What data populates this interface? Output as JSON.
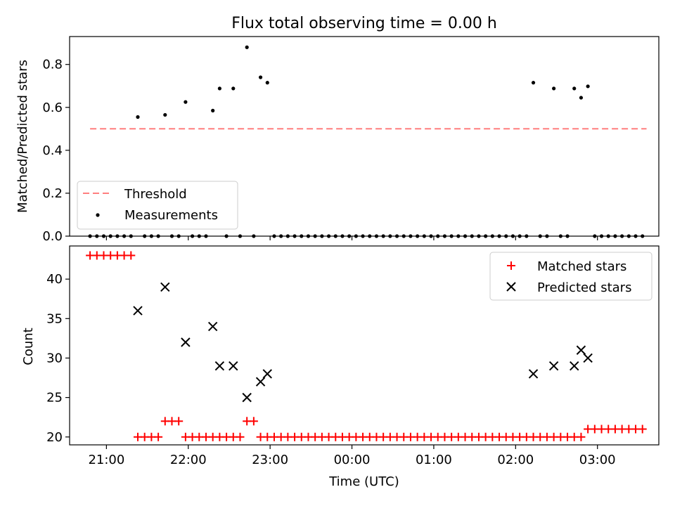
{
  "chart_data": [
    {
      "type": "scatter",
      "title": "Flux total observing time = 0.00 h",
      "xlabel": "",
      "ylabel": "Matched/Predicted stars",
      "xlim": [
        "20:33",
        "03:45"
      ],
      "ylim": [
        0,
        0.93
      ],
      "yticks": [
        "0.0",
        "0.2",
        "0.4",
        "0.6",
        "0.8"
      ],
      "xticks": [
        "21:00",
        "22:00",
        "23:00",
        "00:00",
        "01:00",
        "02:00",
        "03:00"
      ],
      "legend_position": "lower-left",
      "threshold": {
        "name": "Threshold",
        "value": 0.5,
        "x_start": "20:48",
        "x_end": "03:36",
        "color": "#ff7f7f"
      },
      "series": [
        {
          "name": "Measurements",
          "color": "#000000",
          "points": [
            [
              "20:48",
              0
            ],
            [
              "20:53",
              0
            ],
            [
              "20:58",
              0
            ],
            [
              "21:03",
              0
            ],
            [
              "21:08",
              0
            ],
            [
              "21:13",
              0
            ],
            [
              "21:18",
              0
            ],
            [
              "21:23",
              0.555
            ],
            [
              "21:28",
              0
            ],
            [
              "21:33",
              0
            ],
            [
              "21:38",
              0
            ],
            [
              "21:43",
              0.565
            ],
            [
              "21:48",
              0
            ],
            [
              "21:53",
              0
            ],
            [
              "21:58",
              0.625
            ],
            [
              "22:03",
              0
            ],
            [
              "22:08",
              0
            ],
            [
              "22:13",
              0
            ],
            [
              "22:18",
              0.585
            ],
            [
              "22:23",
              0.688
            ],
            [
              "22:28",
              0
            ],
            [
              "22:33",
              0.688
            ],
            [
              "22:38",
              0
            ],
            [
              "22:43",
              0.88
            ],
            [
              "22:48",
              0
            ],
            [
              "22:53",
              0.74
            ],
            [
              "22:58",
              0.715
            ],
            [
              "23:03",
              0
            ],
            [
              "23:08",
              0
            ],
            [
              "23:13",
              0
            ],
            [
              "23:18",
              0
            ],
            [
              "23:23",
              0
            ],
            [
              "23:28",
              0
            ],
            [
              "23:33",
              0
            ],
            [
              "23:38",
              0
            ],
            [
              "23:43",
              0
            ],
            [
              "23:48",
              0
            ],
            [
              "23:53",
              0
            ],
            [
              "23:58",
              0
            ],
            [
              "00:03",
              0
            ],
            [
              "00:08",
              0
            ],
            [
              "00:13",
              0
            ],
            [
              "00:18",
              0
            ],
            [
              "00:23",
              0
            ],
            [
              "00:28",
              0
            ],
            [
              "00:33",
              0
            ],
            [
              "00:38",
              0
            ],
            [
              "00:43",
              0
            ],
            [
              "00:48",
              0
            ],
            [
              "00:53",
              0
            ],
            [
              "00:58",
              0
            ],
            [
              "01:03",
              0
            ],
            [
              "01:08",
              0
            ],
            [
              "01:13",
              0
            ],
            [
              "01:18",
              0
            ],
            [
              "01:23",
              0
            ],
            [
              "01:28",
              0
            ],
            [
              "01:33",
              0
            ],
            [
              "01:38",
              0
            ],
            [
              "01:43",
              0
            ],
            [
              "01:48",
              0
            ],
            [
              "01:53",
              0
            ],
            [
              "01:58",
              0
            ],
            [
              "02:03",
              0
            ],
            [
              "02:08",
              0
            ],
            [
              "02:13",
              0.715
            ],
            [
              "02:18",
              0
            ],
            [
              "02:23",
              0
            ],
            [
              "02:28",
              0.688
            ],
            [
              "02:33",
              0
            ],
            [
              "02:38",
              0
            ],
            [
              "02:43",
              0.688
            ],
            [
              "02:48",
              0.645
            ],
            [
              "02:53",
              0.698
            ],
            [
              "02:58",
              0
            ],
            [
              "03:03",
              0
            ],
            [
              "03:08",
              0
            ],
            [
              "03:13",
              0
            ],
            [
              "03:18",
              0
            ],
            [
              "03:23",
              0
            ],
            [
              "03:28",
              0
            ],
            [
              "03:33",
              0
            ]
          ]
        }
      ]
    },
    {
      "type": "scatter",
      "title": "",
      "xlabel": "Time (UTC)",
      "ylabel": "Count",
      "xlim": [
        "20:33",
        "03:45"
      ],
      "ylim": [
        19,
        44.2
      ],
      "yticks": [
        "20",
        "25",
        "30",
        "35",
        "40"
      ],
      "xticks": [
        "21:00",
        "22:00",
        "23:00",
        "00:00",
        "01:00",
        "02:00",
        "03:00"
      ],
      "legend_position": "upper-right",
      "series": [
        {
          "name": "Matched stars",
          "marker": "plus",
          "color": "#ff0000",
          "points": [
            [
              "20:48",
              43
            ],
            [
              "20:53",
              43
            ],
            [
              "20:58",
              43
            ],
            [
              "21:03",
              43
            ],
            [
              "21:08",
              43
            ],
            [
              "21:13",
              43
            ],
            [
              "21:18",
              43
            ],
            [
              "21:23",
              20
            ],
            [
              "21:28",
              20
            ],
            [
              "21:33",
              20
            ],
            [
              "21:38",
              20
            ],
            [
              "21:43",
              22
            ],
            [
              "21:48",
              22
            ],
            [
              "21:53",
              22
            ],
            [
              "21:58",
              20
            ],
            [
              "22:03",
              20
            ],
            [
              "22:08",
              20
            ],
            [
              "22:13",
              20
            ],
            [
              "22:18",
              20
            ],
            [
              "22:23",
              20
            ],
            [
              "22:28",
              20
            ],
            [
              "22:33",
              20
            ],
            [
              "22:38",
              20
            ],
            [
              "22:43",
              22
            ],
            [
              "22:48",
              22
            ],
            [
              "22:53",
              20
            ],
            [
              "22:58",
              20
            ],
            [
              "23:03",
              20
            ],
            [
              "23:08",
              20
            ],
            [
              "23:13",
              20
            ],
            [
              "23:18",
              20
            ],
            [
              "23:23",
              20
            ],
            [
              "23:28",
              20
            ],
            [
              "23:33",
              20
            ],
            [
              "23:38",
              20
            ],
            [
              "23:43",
              20
            ],
            [
              "23:48",
              20
            ],
            [
              "23:53",
              20
            ],
            [
              "23:58",
              20
            ],
            [
              "00:03",
              20
            ],
            [
              "00:08",
              20
            ],
            [
              "00:13",
              20
            ],
            [
              "00:18",
              20
            ],
            [
              "00:23",
              20
            ],
            [
              "00:28",
              20
            ],
            [
              "00:33",
              20
            ],
            [
              "00:38",
              20
            ],
            [
              "00:43",
              20
            ],
            [
              "00:48",
              20
            ],
            [
              "00:53",
              20
            ],
            [
              "00:58",
              20
            ],
            [
              "01:03",
              20
            ],
            [
              "01:08",
              20
            ],
            [
              "01:13",
              20
            ],
            [
              "01:18",
              20
            ],
            [
              "01:23",
              20
            ],
            [
              "01:28",
              20
            ],
            [
              "01:33",
              20
            ],
            [
              "01:38",
              20
            ],
            [
              "01:43",
              20
            ],
            [
              "01:48",
              20
            ],
            [
              "01:53",
              20
            ],
            [
              "01:58",
              20
            ],
            [
              "02:03",
              20
            ],
            [
              "02:08",
              20
            ],
            [
              "02:13",
              20
            ],
            [
              "02:18",
              20
            ],
            [
              "02:23",
              20
            ],
            [
              "02:28",
              20
            ],
            [
              "02:33",
              20
            ],
            [
              "02:38",
              20
            ],
            [
              "02:43",
              20
            ],
            [
              "02:48",
              20
            ],
            [
              "02:53",
              21
            ],
            [
              "02:58",
              21
            ],
            [
              "03:03",
              21
            ],
            [
              "03:08",
              21
            ],
            [
              "03:13",
              21
            ],
            [
              "03:18",
              21
            ],
            [
              "03:23",
              21
            ],
            [
              "03:28",
              21
            ],
            [
              "03:33",
              21
            ]
          ]
        },
        {
          "name": "Predicted stars",
          "marker": "x",
          "color": "#000000",
          "points": [
            [
              "21:23",
              36
            ],
            [
              "21:43",
              39
            ],
            [
              "21:58",
              32
            ],
            [
              "22:18",
              34
            ],
            [
              "22:23",
              29
            ],
            [
              "22:33",
              29
            ],
            [
              "22:43",
              25
            ],
            [
              "22:53",
              27
            ],
            [
              "22:58",
              28
            ],
            [
              "02:13",
              28
            ],
            [
              "02:28",
              29
            ],
            [
              "02:43",
              29
            ],
            [
              "02:48",
              31
            ],
            [
              "02:53",
              30
            ]
          ]
        }
      ]
    }
  ]
}
